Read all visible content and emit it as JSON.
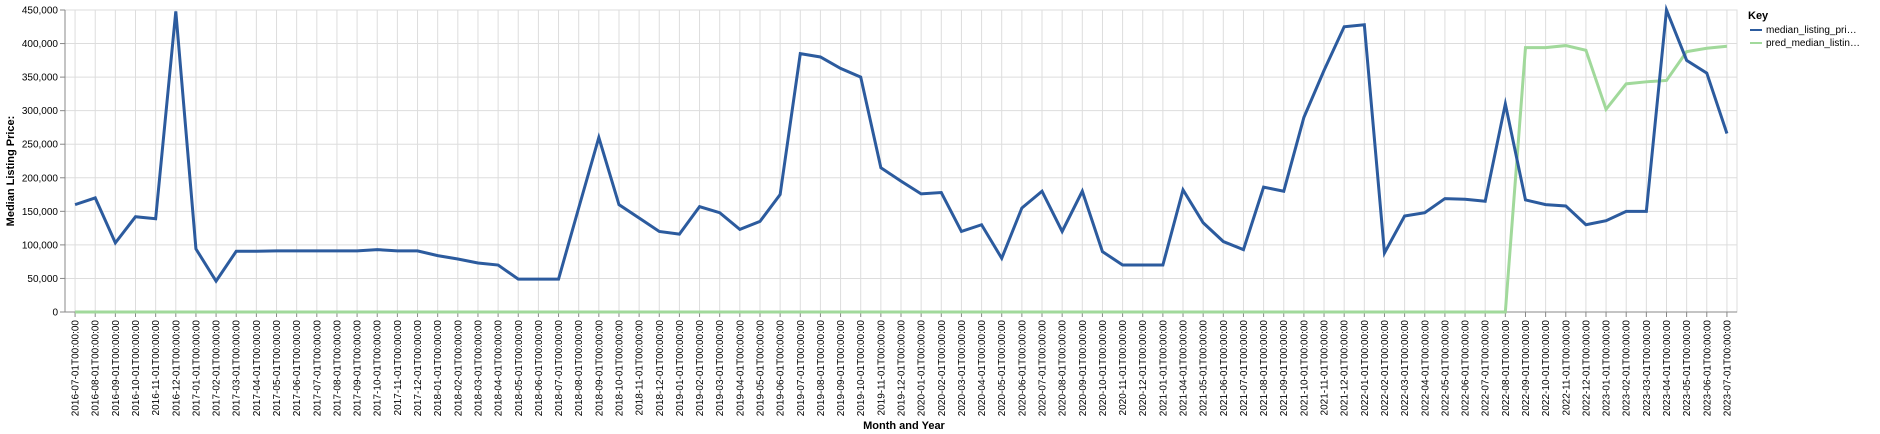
{
  "chart_data": {
    "type": "line",
    "xlabel": "Month and Year",
    "ylabel": "Median Listing Price:",
    "ylim": [
      0,
      450000
    ],
    "y_ticks": [
      "0",
      "50,000",
      "100,000",
      "150,000",
      "200,000",
      "250,000",
      "300,000",
      "350,000",
      "400,000",
      "450,000"
    ],
    "grid": true,
    "legend_position": "right",
    "legend_title": "Key",
    "categories": [
      "2016-07-01T00:00:00",
      "2016-08-01T00:00:00",
      "2016-09-01T00:00:00",
      "2016-10-01T00:00:00",
      "2016-11-01T00:00:00",
      "2016-12-01T00:00:00",
      "2017-01-01T00:00:00",
      "2017-02-01T00:00:00",
      "2017-03-01T00:00:00",
      "2017-04-01T00:00:00",
      "2017-05-01T00:00:00",
      "2017-06-01T00:00:00",
      "2017-07-01T00:00:00",
      "2017-08-01T00:00:00",
      "2017-09-01T00:00:00",
      "2017-10-01T00:00:00",
      "2017-11-01T00:00:00",
      "2017-12-01T00:00:00",
      "2018-01-01T00:00:00",
      "2018-02-01T00:00:00",
      "2018-03-01T00:00:00",
      "2018-04-01T00:00:00",
      "2018-05-01T00:00:00",
      "2018-06-01T00:00:00",
      "2018-07-01T00:00:00",
      "2018-08-01T00:00:00",
      "2018-09-01T00:00:00",
      "2018-10-01T00:00:00",
      "2018-11-01T00:00:00",
      "2018-12-01T00:00:00",
      "2019-01-01T00:00:00",
      "2019-02-01T00:00:00",
      "2019-03-01T00:00:00",
      "2019-04-01T00:00:00",
      "2019-05-01T00:00:00",
      "2019-06-01T00:00:00",
      "2019-07-01T00:00:00",
      "2019-08-01T00:00:00",
      "2019-09-01T00:00:00",
      "2019-10-01T00:00:00",
      "2019-11-01T00:00:00",
      "2019-12-01T00:00:00",
      "2020-01-01T00:00:00",
      "2020-02-01T00:00:00",
      "2020-03-01T00:00:00",
      "2020-04-01T00:00:00",
      "2020-05-01T00:00:00",
      "2020-06-01T00:00:00",
      "2020-07-01T00:00:00",
      "2020-08-01T00:00:00",
      "2020-09-01T00:00:00",
      "2020-10-01T00:00:00",
      "2020-11-01T00:00:00",
      "2020-12-01T00:00:00",
      "2021-01-01T00:00:00",
      "2021-04-01T00:00:00",
      "2021-05-01T00:00:00",
      "2021-06-01T00:00:00",
      "2021-07-01T00:00:00",
      "2021-08-01T00:00:00",
      "2021-09-01T00:00:00",
      "2021-10-01T00:00:00",
      "2021-11-01T00:00:00",
      "2021-12-01T00:00:00",
      "2022-01-01T00:00:00",
      "2022-02-01T00:00:00",
      "2022-03-01T00:00:00",
      "2022-04-01T00:00:00",
      "2022-05-01T00:00:00",
      "2022-06-01T00:00:00",
      "2022-07-01T00:00:00",
      "2022-08-01T00:00:00",
      "2022-09-01T00:00:00",
      "2022-10-01T00:00:00",
      "2022-11-01T00:00:00",
      "2022-12-01T00:00:00",
      "2023-01-01T00:00:00",
      "2023-02-01T00:00:00",
      "2023-03-01T00:00:00",
      "2023-04-01T00:00:00",
      "2023-05-01T00:00:00",
      "2023-06-01T00:00:00",
      "2023-07-01T00:00:00"
    ],
    "series": [
      {
        "name": "median_listing_pri…",
        "color": "#2c5b9e",
        "values": [
          160000,
          170000,
          103000,
          142000,
          139000,
          448000,
          94000,
          46000,
          90500,
          90500,
          91000,
          91000,
          91000,
          91000,
          91000,
          93000,
          91000,
          91000,
          84000,
          79000,
          73000,
          70000,
          49000,
          49000,
          49000,
          155000,
          260000,
          160000,
          140000,
          120000,
          116000,
          157000,
          148000,
          123000,
          135000,
          175000,
          385000,
          380000,
          363000,
          350000,
          215000,
          195000,
          176000,
          178000,
          120000,
          130000,
          80000,
          155000,
          180000,
          120000,
          180000,
          90000,
          70000,
          70000,
          70000,
          182000,
          133000,
          105000,
          93000,
          186000,
          180000,
          290000,
          360000,
          425000,
          428000,
          88000,
          143000,
          148000,
          169000,
          168000,
          165000,
          310000,
          167000,
          160000,
          158000,
          130000,
          136000,
          150000,
          150000,
          450000,
          375000,
          356000,
          266000
        ]
      },
      {
        "name": "pred_median_listin…",
        "color": "#a1d99b",
        "values": [
          0,
          0,
          0,
          0,
          0,
          0,
          0,
          0,
          0,
          0,
          0,
          0,
          0,
          0,
          0,
          0,
          0,
          0,
          0,
          0,
          0,
          0,
          0,
          0,
          0,
          0,
          0,
          0,
          0,
          0,
          0,
          0,
          0,
          0,
          0,
          0,
          0,
          0,
          0,
          0,
          0,
          0,
          0,
          0,
          0,
          0,
          0,
          0,
          0,
          0,
          0,
          0,
          0,
          0,
          0,
          0,
          0,
          0,
          0,
          0,
          0,
          0,
          0,
          0,
          0,
          0,
          0,
          0,
          0,
          0,
          0,
          0,
          394000,
          394000,
          397000,
          390000,
          302000,
          340000,
          343000,
          345000,
          388000,
          393000,
          396000
        ]
      }
    ]
  }
}
